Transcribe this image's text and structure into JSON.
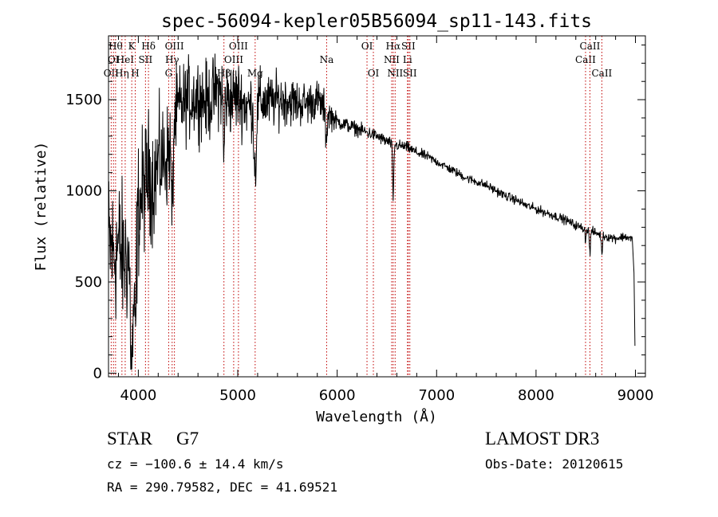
{
  "chart_data": {
    "type": "line",
    "title": "spec-56094-kepler05B56094_sp11-143.fits",
    "xlabel": "Wavelength (Å)",
    "ylabel": "Flux (relative)",
    "xlim": [
      3700,
      9100
    ],
    "ylim": [
      -20,
      1850
    ],
    "xticks": [
      4000,
      5000,
      6000,
      7000,
      8000,
      9000
    ],
    "xtick_labels": [
      "4000",
      "5000",
      "6000",
      "7000",
      "8000",
      "9000"
    ],
    "yticks": [
      0,
      500,
      1000,
      1500
    ],
    "ytick_labels": [
      "0",
      "500",
      "1000",
      "1500"
    ],
    "line_color": "#000000",
    "marker_color": "#c00000",
    "series": [
      {
        "name": "flux",
        "anchors": [
          [
            3700,
            700
          ],
          [
            3750,
            650
          ],
          [
            3800,
            700
          ],
          [
            3850,
            620
          ],
          [
            3900,
            650
          ],
          [
            3950,
            700
          ],
          [
            4000,
            900
          ],
          [
            4050,
            1000
          ],
          [
            4100,
            1100
          ],
          [
            4150,
            1050
          ],
          [
            4200,
            1150
          ],
          [
            4300,
            1200
          ],
          [
            4350,
            1350
          ],
          [
            4400,
            1450
          ],
          [
            4500,
            1500
          ],
          [
            4600,
            1520
          ],
          [
            4700,
            1480
          ],
          [
            4800,
            1560
          ],
          [
            4900,
            1500
          ],
          [
            5000,
            1520
          ],
          [
            5100,
            1460
          ],
          [
            5200,
            1500
          ],
          [
            5300,
            1480
          ],
          [
            5400,
            1500
          ],
          [
            5500,
            1500
          ],
          [
            5600,
            1480
          ],
          [
            5700,
            1480
          ],
          [
            5800,
            1500
          ],
          [
            5900,
            1430
          ],
          [
            6000,
            1380
          ],
          [
            6100,
            1360
          ],
          [
            6200,
            1340
          ],
          [
            6300,
            1320
          ],
          [
            6400,
            1300
          ],
          [
            6500,
            1270
          ],
          [
            6600,
            1250
          ],
          [
            6700,
            1240
          ],
          [
            6800,
            1210
          ],
          [
            6900,
            1190
          ],
          [
            7000,
            1160
          ],
          [
            7100,
            1130
          ],
          [
            7200,
            1100
          ],
          [
            7300,
            1070
          ],
          [
            7400,
            1050
          ],
          [
            7500,
            1030
          ],
          [
            7600,
            1000
          ],
          [
            7700,
            970
          ],
          [
            7800,
            950
          ],
          [
            7900,
            920
          ],
          [
            8000,
            900
          ],
          [
            8100,
            880
          ],
          [
            8200,
            860
          ],
          [
            8300,
            840
          ],
          [
            8400,
            810
          ],
          [
            8500,
            790
          ],
          [
            8600,
            770
          ],
          [
            8700,
            750
          ],
          [
            8800,
            740
          ],
          [
            8900,
            750
          ],
          [
            8970,
            730
          ]
        ],
        "noise": [
          [
            3700,
            300
          ],
          [
            4000,
            260
          ],
          [
            4300,
            200
          ],
          [
            4400,
            160
          ],
          [
            5000,
            140
          ],
          [
            5300,
            110
          ],
          [
            5900,
            70
          ],
          [
            6000,
            30
          ],
          [
            7000,
            18
          ],
          [
            9000,
            18
          ]
        ],
        "absorption": [
          {
            "wave": 3934,
            "depth": 700,
            "width": 12
          },
          {
            "wave": 3969,
            "depth": 600,
            "width": 10
          },
          {
            "wave": 4340,
            "depth": 500,
            "width": 8
          },
          {
            "wave": 4860,
            "depth": 350,
            "width": 6
          },
          {
            "wave": 5175,
            "depth": 380,
            "width": 12
          },
          {
            "wave": 5890,
            "depth": 150,
            "width": 8
          },
          {
            "wave": 6563,
            "depth": 300,
            "width": 6
          },
          {
            "wave": 8498,
            "depth": 60,
            "width": 5
          },
          {
            "wave": 8542,
            "depth": 120,
            "width": 6
          },
          {
            "wave": 8662,
            "depth": 100,
            "width": 6
          }
        ],
        "end_drop": [
          [
            8985,
            550
          ],
          [
            8995,
            150
          ]
        ]
      }
    ],
    "line_markers": [
      {
        "wave": 3727,
        "label": "OII",
        "row": 2
      },
      {
        "wave": 3750,
        "label": "OI",
        "row": 1
      },
      {
        "wave": 3771,
        "label": "Hθ",
        "row": 0
      },
      {
        "wave": 3835,
        "label": "Hη",
        "row": 2
      },
      {
        "wave": 3868,
        "label": "HeI",
        "row": 1
      },
      {
        "wave": 3934,
        "label": "K",
        "row": 0
      },
      {
        "wave": 3969,
        "label": "H",
        "row": 2
      },
      {
        "wave": 4072,
        "label": "SII",
        "row": 1
      },
      {
        "wave": 4102,
        "label": "Hδ",
        "row": 0
      },
      {
        "wave": 4305,
        "label": "G",
        "row": 2
      },
      {
        "wave": 4340,
        "label": "Hγ",
        "row": 1
      },
      {
        "wave": 4363,
        "label": "OIII",
        "row": 0
      },
      {
        "wave": 4861,
        "label": "Hβ",
        "row": 2
      },
      {
        "wave": 4959,
        "label": "OIII",
        "row": 1
      },
      {
        "wave": 5007,
        "label": "OIII",
        "row": 0
      },
      {
        "wave": 5175,
        "label": "Mg",
        "row": 2
      },
      {
        "wave": 5894,
        "label": "Na",
        "row": 1
      },
      {
        "wave": 6300,
        "label": "OI",
        "row": 0
      },
      {
        "wave": 6364,
        "label": "OI",
        "row": 2
      },
      {
        "wave": 6548,
        "label": "NII",
        "row": 1
      },
      {
        "wave": 6563,
        "label": "Hα",
        "row": 0
      },
      {
        "wave": 6583,
        "label": "NII",
        "row": 2
      },
      {
        "wave": 6707,
        "label": "Li",
        "row": 1
      },
      {
        "wave": 6716,
        "label": "SII",
        "row": 0
      },
      {
        "wave": 6731,
        "label": "SII",
        "row": 2
      },
      {
        "wave": 8498,
        "label": "CaII",
        "row": 1
      },
      {
        "wave": 8542,
        "label": "CaII",
        "row": 0
      },
      {
        "wave": 8662,
        "label": "CaII",
        "row": 2
      }
    ]
  },
  "info": {
    "class": "STAR",
    "subclass": "G7",
    "velocity": "cz = −100.6 ± 14.4 km/s",
    "coords": "RA = 290.79582, DEC =  41.69521",
    "survey": "LAMOST DR3",
    "obs_date": "Obs-Date: 20120615"
  }
}
